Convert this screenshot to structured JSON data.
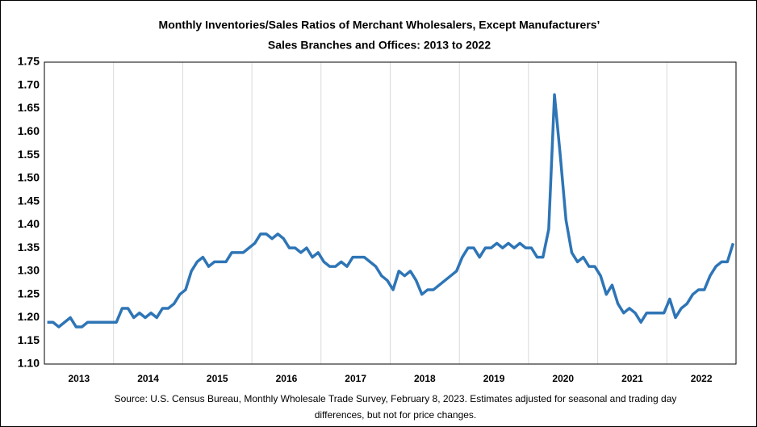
{
  "chart_data": {
    "type": "line",
    "title": [
      "Monthly Inventories/Sales Ratios of Merchant Wholesalers, Except Manufacturers’",
      "Sales Branches and Offices: 2013 to 2022"
    ],
    "source": [
      "Source: U.S. Census Bureau, Monthly Wholesale Trade Survey, February 8, 2023. Estimates adjusted for seasonal and trading day",
      "differences, but not for price changes."
    ],
    "categories": [
      null,
      null,
      null,
      null,
      null,
      null,
      "2013",
      null,
      null,
      null,
      null,
      null,
      null,
      null,
      null,
      null,
      null,
      null,
      "2014",
      null,
      null,
      null,
      null,
      null,
      null,
      null,
      null,
      null,
      null,
      null,
      "2015",
      null,
      null,
      null,
      null,
      null,
      null,
      null,
      null,
      null,
      null,
      null,
      "2016",
      null,
      null,
      null,
      null,
      null,
      null,
      null,
      null,
      null,
      null,
      null,
      "2017",
      null,
      null,
      null,
      null,
      null,
      null,
      null,
      null,
      null,
      null,
      null,
      "2018",
      null,
      null,
      null,
      null,
      null,
      null,
      null,
      null,
      null,
      null,
      null,
      "2019",
      null,
      null,
      null,
      null,
      null,
      null,
      null,
      null,
      null,
      null,
      null,
      "2020",
      null,
      null,
      null,
      null,
      null,
      null,
      null,
      null,
      null,
      null,
      null,
      "2021",
      null,
      null,
      null,
      null,
      null,
      null,
      null,
      null,
      null,
      null,
      null,
      "2022",
      null,
      null,
      null,
      null,
      null
    ],
    "series": [
      {
        "color": "#2e75b6",
        "values": [
          1.19,
          1.19,
          1.18,
          1.19,
          1.2,
          1.18,
          1.18,
          1.19,
          1.19,
          1.19,
          1.19,
          1.19,
          1.19,
          1.22,
          1.22,
          1.2,
          1.21,
          1.2,
          1.21,
          1.2,
          1.22,
          1.22,
          1.23,
          1.25,
          1.26,
          1.3,
          1.32,
          1.33,
          1.31,
          1.32,
          1.32,
          1.32,
          1.34,
          1.34,
          1.34,
          1.35,
          1.36,
          1.38,
          1.38,
          1.37,
          1.38,
          1.37,
          1.35,
          1.35,
          1.34,
          1.35,
          1.33,
          1.34,
          1.32,
          1.31,
          1.31,
          1.32,
          1.31,
          1.33,
          1.33,
          1.33,
          1.32,
          1.31,
          1.29,
          1.28,
          1.26,
          1.3,
          1.29,
          1.3,
          1.28,
          1.25,
          1.26,
          1.26,
          1.27,
          1.28,
          1.29,
          1.3,
          1.33,
          1.35,
          1.35,
          1.33,
          1.35,
          1.35,
          1.36,
          1.35,
          1.36,
          1.35,
          1.36,
          1.35,
          1.35,
          1.33,
          1.33,
          1.39,
          1.68,
          1.55,
          1.41,
          1.34,
          1.32,
          1.33,
          1.31,
          1.31,
          1.29,
          1.25,
          1.27,
          1.23,
          1.21,
          1.22,
          1.21,
          1.19,
          1.21,
          1.21,
          1.21,
          1.21,
          1.24,
          1.2,
          1.22,
          1.23,
          1.25,
          1.26,
          1.26,
          1.29,
          1.31,
          1.32,
          1.32,
          1.36
        ]
      }
    ],
    "ylim": [
      1.1,
      1.75
    ],
    "yticks": [
      {
        "value": 1.1,
        "label": "1.10"
      },
      {
        "value": 1.15,
        "label": "1.15"
      },
      {
        "value": 1.2,
        "label": "1.20"
      },
      {
        "value": 1.25,
        "label": "1.25"
      },
      {
        "value": 1.3,
        "label": "1.30"
      },
      {
        "value": 1.35,
        "label": "1.35"
      },
      {
        "value": 1.4,
        "label": "1.40"
      },
      {
        "value": 1.45,
        "label": "1.45"
      },
      {
        "value": 1.5,
        "label": "1.50"
      },
      {
        "value": 1.55,
        "label": "1.55"
      },
      {
        "value": 1.6,
        "label": "1.60"
      },
      {
        "value": 1.65,
        "label": "1.65"
      },
      {
        "value": 1.7,
        "label": "1.70"
      },
      {
        "value": 1.75,
        "label": "1.75"
      }
    ],
    "grid": true
  }
}
